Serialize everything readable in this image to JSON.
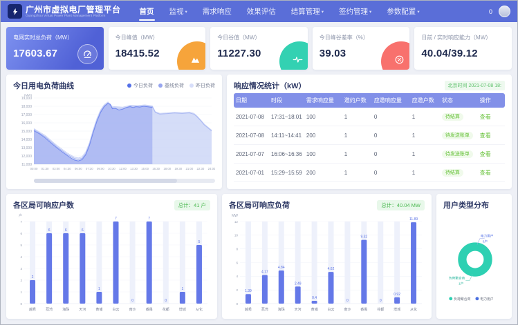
{
  "navbar": {
    "logo_title": "广州市虚拟电厂管理平台",
    "logo_subtitle": "Guangzhou Virtual Power Plant Management Platform",
    "notification_count": "0",
    "items": [
      {
        "name": "home",
        "label": "首页",
        "active": true,
        "caret": false
      },
      {
        "name": "monitor",
        "label": "监视",
        "active": false,
        "caret": true
      },
      {
        "name": "demand-response",
        "label": "需求响应",
        "active": false,
        "caret": false
      },
      {
        "name": "effect-evaluation",
        "label": "效果评估",
        "active": false,
        "caret": false
      },
      {
        "name": "settlement-management",
        "label": "结算管理",
        "active": false,
        "caret": true
      },
      {
        "name": "contract-management",
        "label": "签约管理",
        "active": false,
        "caret": true
      },
      {
        "name": "parameter-config",
        "label": "参数配置",
        "active": false,
        "caret": true
      }
    ]
  },
  "kpi_cards": [
    {
      "name": "grid-realtime-load",
      "label": "电网实时总负荷（MW）",
      "value": "17603.67",
      "icon": "gauge-icon",
      "style": "primary",
      "accent": "#5a6ed8"
    },
    {
      "name": "today-peak",
      "label": "今日峰值（MW）",
      "value": "18415.52",
      "icon": "peak-icon",
      "style": "plain",
      "accent": "#f6a43b"
    },
    {
      "name": "today-valley",
      "label": "今日谷值（MW）",
      "value": "11227.30",
      "icon": "pulse-icon",
      "style": "plain",
      "accent": "#33d1b2"
    },
    {
      "name": "peak-valley-rate",
      "label": "今日峰谷差率（%）",
      "value": "39.03",
      "icon": "percent-icon",
      "style": "plain",
      "accent": "#f8716d"
    },
    {
      "name": "response-capacity",
      "label": "日前 / 实时响应能力（MW）",
      "value": "40.04/39.12",
      "icon": null,
      "style": "plain",
      "accent": null
    }
  ],
  "load_curve_chart": {
    "type": "line",
    "title": "今日用电负荷曲线",
    "ylabel": "(MW)",
    "ymin": 11000,
    "ymax": 19000,
    "ytick_step": 1000,
    "xticks": [
      "00:00",
      "01:30",
      "03:00",
      "04:30",
      "06:00",
      "07:30",
      "09:00",
      "10:30",
      "12:00",
      "13:30",
      "15:00",
      "16:30",
      "18:00",
      "19:30",
      "21:00",
      "22:30",
      "24:00"
    ],
    "legend": [
      {
        "label": "今日负荷",
        "color": "#5470e8"
      },
      {
        "label": "基线负荷",
        "color": "#97a5ef"
      },
      {
        "label": "昨日负荷",
        "color": "#d7defa"
      }
    ],
    "series": [
      {
        "name": "昨日负荷",
        "line": "#ccd5f7",
        "fill": "rgba(204,213,247,0.45)",
        "points": [
          [
            0,
            15300
          ],
          [
            1.5,
            14500
          ],
          [
            3,
            13350
          ],
          [
            4.5,
            12350
          ],
          [
            5.5,
            11850
          ],
          [
            6,
            11750
          ],
          [
            6.5,
            11900
          ],
          [
            7,
            12500
          ],
          [
            7.5,
            13600
          ],
          [
            8,
            15150
          ],
          [
            8.5,
            16500
          ],
          [
            9,
            17550
          ],
          [
            9.5,
            18200
          ],
          [
            10,
            18520
          ],
          [
            10.6,
            17980
          ],
          [
            11,
            17950
          ],
          [
            12,
            17880
          ],
          [
            13,
            18120
          ],
          [
            14,
            18080
          ],
          [
            15,
            18170
          ],
          [
            16,
            18050
          ],
          [
            16.4,
            17350
          ],
          [
            17,
            17150
          ],
          [
            18,
            17200
          ],
          [
            19,
            17280
          ],
          [
            20,
            17230
          ],
          [
            21,
            17300
          ],
          [
            21.6,
            17150
          ],
          [
            22,
            16850
          ],
          [
            22.5,
            16380
          ],
          [
            23,
            15850
          ],
          [
            24,
            15120
          ]
        ]
      },
      {
        "name": "基线负荷",
        "line": "#aab8f2",
        "fill": "rgba(170,184,242,0.30)",
        "points": [
          [
            0,
            15180
          ],
          [
            1.5,
            14350
          ],
          [
            3,
            13180
          ],
          [
            4.5,
            12180
          ],
          [
            5.5,
            11680
          ],
          [
            6,
            11580
          ],
          [
            6.5,
            11720
          ],
          [
            7,
            12300
          ],
          [
            7.5,
            13400
          ],
          [
            8,
            14950
          ],
          [
            8.5,
            16300
          ],
          [
            9,
            17380
          ],
          [
            9.5,
            18050
          ],
          [
            10,
            18420
          ],
          [
            10.6,
            17850
          ],
          [
            11,
            17820
          ],
          [
            12,
            17750
          ],
          [
            13,
            18020
          ],
          [
            14,
            17980
          ],
          [
            15,
            18050
          ],
          [
            16,
            17950
          ],
          [
            16.4,
            17250
          ],
          [
            17,
            17050
          ],
          [
            18,
            17120
          ],
          [
            19,
            17180
          ],
          [
            20,
            17130
          ],
          [
            21,
            17200
          ],
          [
            21.6,
            17050
          ],
          [
            22,
            16750
          ],
          [
            22.5,
            16280
          ],
          [
            23,
            15750
          ],
          [
            24,
            15020
          ]
        ]
      },
      {
        "name": "今日负荷",
        "line": "#7289ee",
        "fill": "rgba(130,148,238,0.45)",
        "points": [
          [
            0,
            15050
          ],
          [
            0.8,
            14650
          ],
          [
            1.5,
            14200
          ],
          [
            2.2,
            13650
          ],
          [
            3,
            13050
          ],
          [
            3.8,
            12500
          ],
          [
            4.5,
            12050
          ],
          [
            5,
            11750
          ],
          [
            5.5,
            11500
          ],
          [
            6,
            11400
          ],
          [
            6.5,
            11550
          ],
          [
            7,
            12150
          ],
          [
            7.5,
            13250
          ],
          [
            8,
            14800
          ],
          [
            8.5,
            16150
          ],
          [
            9,
            17250
          ],
          [
            9.5,
            17950
          ],
          [
            10,
            18350
          ],
          [
            10.3,
            18250
          ],
          [
            10.6,
            17700
          ],
          [
            11,
            17750
          ],
          [
            11.5,
            17550
          ],
          [
            12,
            17650
          ],
          [
            12.5,
            17850
          ],
          [
            13,
            17950
          ],
          [
            13.4,
            17850
          ],
          [
            13.8,
            17950
          ],
          [
            14.3,
            17900
          ],
          [
            14.8,
            18000
          ],
          [
            15.3,
            17950
          ],
          [
            16,
            17850
          ]
        ]
      }
    ]
  },
  "response_table": {
    "title": "响应情况统计（kW）",
    "time_badge": "北京时间 2021-07-08 18:",
    "columns": [
      "日期",
      "时段",
      "需求响应量",
      "邀约户数",
      "应邀响应量",
      "应邀户数",
      "状态",
      "操作"
    ],
    "rows": [
      {
        "date": "2021-07-08",
        "period": "17:31~18:01",
        "demand": "100",
        "invited": "1",
        "accepted_amount": "0",
        "accepted_count": "1",
        "status": "待结算",
        "action": "查看"
      },
      {
        "date": "2021-07-08",
        "period": "14:11~14:41",
        "demand": "200",
        "invited": "1",
        "accepted_amount": "0",
        "accepted_count": "1",
        "status": "待发送账单",
        "action": "查看"
      },
      {
        "date": "2021-07-07",
        "period": "16:06~16:36",
        "demand": "100",
        "invited": "1",
        "accepted_amount": "0",
        "accepted_count": "1",
        "status": "待发送账单",
        "action": "查看"
      },
      {
        "date": "2021-07-01",
        "period": "15:29~15:59",
        "demand": "200",
        "invited": "1",
        "accepted_amount": "0",
        "accepted_count": "1",
        "status": "待结算",
        "action": "查看"
      }
    ]
  },
  "households_chart": {
    "type": "bar",
    "title": "各区局可响应户数",
    "badge": "总计：41 户",
    "unit": "户",
    "ymax": 7,
    "ytick_step": 1,
    "categories": [
      "越秀",
      "荔湾",
      "海珠",
      "天河",
      "黄埔",
      "白云",
      "南沙",
      "番禺",
      "花都",
      "增城",
      "从化"
    ],
    "values": [
      2,
      6,
      6,
      6,
      1,
      7,
      0,
      7,
      0,
      1,
      5
    ]
  },
  "load_bar_chart": {
    "type": "bar",
    "title": "各区局可响应负荷",
    "badge": "总计：40.04 MW",
    "unit": "MW",
    "ymax": 12,
    "ytick_step": 2,
    "categories": [
      "越秀",
      "荔湾",
      "海珠",
      "天河",
      "黄埔",
      "白云",
      "南沙",
      "番禺",
      "花都",
      "增城",
      "从化"
    ],
    "values": [
      1.39,
      4.17,
      4.84,
      2.49,
      0.4,
      4.62,
      0,
      9.32,
      0,
      0.92,
      11.89
    ]
  },
  "user_type_chart": {
    "type": "donut",
    "title": "用户类型分布",
    "slices": [
      {
        "label": "负荷聚合商",
        "count_label": "1户",
        "value": 1,
        "color": "#2ed0b2",
        "text_color": "#2bb79e"
      },
      {
        "label": "电力用户",
        "count_label": "0户",
        "value": 0,
        "color": "#4a6fe0",
        "text_color": "#5b77e8"
      }
    ],
    "legend": [
      {
        "label": "负荷聚合商",
        "color": "#2ed0b2"
      },
      {
        "label": "电力用户",
        "color": "#4a6fe0"
      }
    ]
  }
}
